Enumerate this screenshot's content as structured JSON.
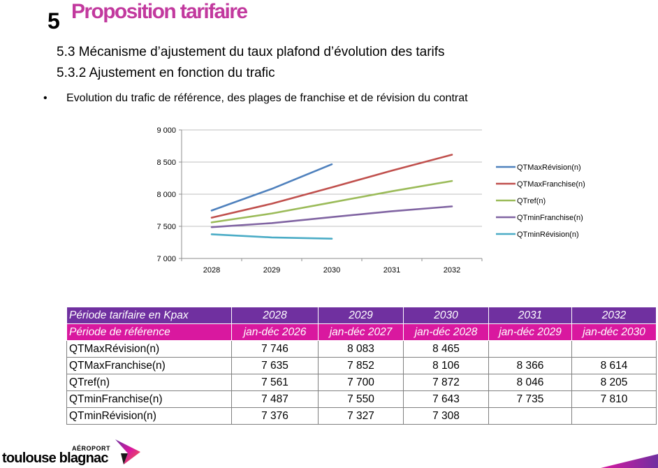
{
  "header": {
    "section_number": "5",
    "title": "Proposition tarifaire",
    "sub1": "5.3 Mécanisme d’ajustement du taux plafond d’évolution des tarifs",
    "sub2": "5.3.2 Ajustement en fonction du trafic",
    "bullet_symbol": "•",
    "bullet_text": "Evolution du trafic de référence, des plages de franchise et de révision du contrat"
  },
  "chart_data": {
    "type": "line",
    "categories": [
      "2028",
      "2029",
      "2030",
      "2031",
      "2032"
    ],
    "ylim": [
      7000,
      9000
    ],
    "yticks": [
      7000,
      7500,
      8000,
      8500,
      9000
    ],
    "ytick_labels": [
      "7 000",
      "7 500",
      "8 000",
      "8 500",
      "9 000"
    ],
    "grid": true,
    "legend": "right",
    "series": [
      {
        "name": "QTMaxRévision(n)",
        "color": "#4f81bd",
        "values": [
          7746,
          8083,
          8465,
          null,
          null
        ]
      },
      {
        "name": "QTMaxFranchise(n)",
        "color": "#c0504d",
        "values": [
          7635,
          7852,
          8106,
          8366,
          8614
        ]
      },
      {
        "name": "QTref(n)",
        "color": "#9bbb59",
        "values": [
          7561,
          7700,
          7872,
          8046,
          8205
        ]
      },
      {
        "name": "QTminFranchise(n)",
        "color": "#8064a2",
        "values": [
          7487,
          7550,
          7643,
          7735,
          7810
        ]
      },
      {
        "name": "QTminRévision(n)",
        "color": "#4bacc6",
        "values": [
          7376,
          7327,
          7308,
          null,
          null
        ]
      }
    ]
  },
  "table": {
    "row1_label": "Période tarifaire en Kpax",
    "row2_label": "Période de référence",
    "years": [
      "2028",
      "2029",
      "2030",
      "2031",
      "2032"
    ],
    "periods": [
      "jan-déc 2026",
      "jan-déc 2027",
      "jan-déc 2028",
      "jan-déc 2029",
      "jan-déc 2030"
    ],
    "rows": [
      {
        "label": "QTMaxRévision(n)",
        "values": [
          "7 746",
          "8 083",
          "8 465",
          "",
          ""
        ]
      },
      {
        "label": "QTMaxFranchise(n)",
        "values": [
          "7 635",
          "7 852",
          "8 106",
          "8 366",
          "8 614"
        ]
      },
      {
        "label": "QTref(n)",
        "values": [
          "7 561",
          "7 700",
          "7 872",
          "8 046",
          "8 205"
        ]
      },
      {
        "label": "QTminFranchise(n)",
        "values": [
          "7 487",
          "7 550",
          "7 643",
          "7 735",
          "7 810"
        ]
      },
      {
        "label": "QTminRévision(n)",
        "values": [
          "7 376",
          "7 327",
          "7 308",
          "",
          ""
        ]
      }
    ]
  },
  "logo": {
    "small": "AÉROPORT",
    "big": "toulouse blagnac"
  }
}
